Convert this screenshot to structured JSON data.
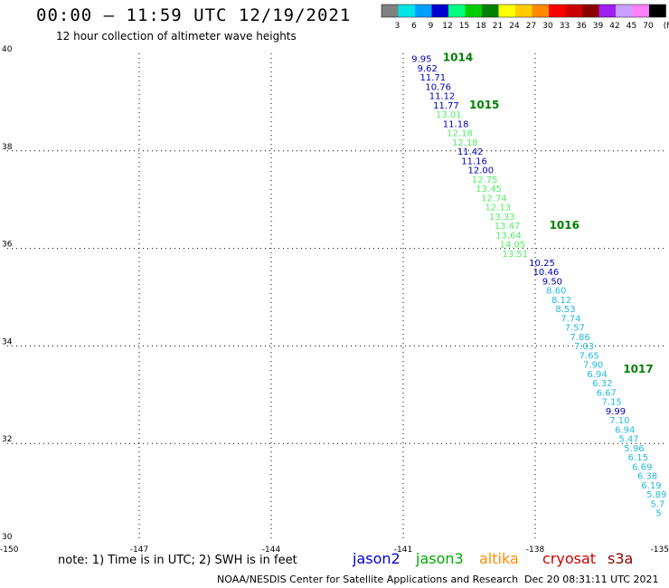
{
  "header": {
    "title": "00:00 – 11:59 UTC 12/19/2021",
    "subtitle": "12 hour collection of altimeter wave heights"
  },
  "color_scale": {
    "colors": [
      "#808080",
      "#00e5e5",
      "#00a0ff",
      "#0000cd",
      "#00ff7f",
      "#00cd00",
      "#008000",
      "#ffff00",
      "#ffcc00",
      "#ff8c00",
      "#ff0000",
      "#cd0000",
      "#8b0000",
      "#a020f0",
      "#c8a0ff",
      "#ff80ff",
      "#000000"
    ],
    "labels": [
      "3",
      "6",
      "9",
      "12",
      "15",
      "18",
      "21",
      "24",
      "27",
      "30",
      "33",
      "36",
      "39",
      "42",
      "45",
      "70"
    ],
    "unit": "(ft)"
  },
  "chart_data": {
    "type": "scatter",
    "title": "00:00 – 11:59 UTC 12/19/2021",
    "subtitle": "12 hour collection of altimeter wave heights",
    "xlim": [
      -150,
      -135
    ],
    "ylim": [
      30,
      40
    ],
    "x_ticks": [
      "-150",
      "-147",
      "-144",
      "-141",
      "-138",
      "-135"
    ],
    "y_ticks": [
      "30",
      "32",
      "34",
      "36",
      "38",
      "40"
    ],
    "grid": true,
    "series": [
      {
        "name": "jason2",
        "color": "#0000cc",
        "values": [
          9.95,
          9.62,
          11.71,
          10.76,
          11.12,
          11.77,
          11.18,
          11.42,
          11.16,
          12.0,
          10.25,
          10.46,
          9.5,
          9.99
        ]
      },
      {
        "name": "jason3",
        "color": "#00aa00",
        "values": [
          13.01,
          12.18,
          12.18,
          12.75,
          13.45,
          12.74,
          12.13,
          13.33,
          13.47,
          13.64,
          14.05,
          13.51
        ]
      },
      {
        "name": "altika",
        "color": "#ff8c00",
        "values": []
      },
      {
        "name": "cryosat",
        "color": "#cc0000",
        "values": []
      },
      {
        "name": "s3a",
        "color": "#8b0000",
        "values": [
          8.6,
          8.12,
          8.53,
          7.74,
          7.57,
          7.86,
          7.03,
          7.65,
          7.9,
          6.94,
          6.32,
          6.67,
          7.15,
          7.1,
          6.94,
          5.47,
          5.96,
          6.15,
          6.69,
          6.38,
          6.19,
          5.89,
          5.7,
          5
        ]
      }
    ],
    "labels": [
      {
        "t": "9.95",
        "c": "#0000b4",
        "lon": -140.81,
        "lat": 39.82
      },
      {
        "t": "9.62",
        "c": "#0000b4",
        "lon": -140.68,
        "lat": 39.63
      },
      {
        "t": "11.71",
        "c": "#0000b4",
        "lon": -140.62,
        "lat": 39.44
      },
      {
        "t": "10.76",
        "c": "#0000b4",
        "lon": -140.5,
        "lat": 39.25
      },
      {
        "t": "11.12",
        "c": "#0000b4",
        "lon": -140.41,
        "lat": 39.06
      },
      {
        "t": "11.77",
        "c": "#0000b4",
        "lon": -140.32,
        "lat": 38.87
      },
      {
        "t": "13.01",
        "c": "#55ee66",
        "lon": -140.26,
        "lat": 38.68
      },
      {
        "t": "11.18",
        "c": "#0000b4",
        "lon": -140.1,
        "lat": 38.49
      },
      {
        "t": "12.18",
        "c": "#55ee66",
        "lon": -140.01,
        "lat": 38.3
      },
      {
        "t": "12.18",
        "c": "#55ee66",
        "lon": -139.89,
        "lat": 38.11
      },
      {
        "t": "11.42",
        "c": "#0000b4",
        "lon": -139.77,
        "lat": 37.92
      },
      {
        "t": "11.16",
        "c": "#0000b4",
        "lon": -139.68,
        "lat": 37.73
      },
      {
        "t": "12.00",
        "c": "#0000b4",
        "lon": -139.53,
        "lat": 37.54
      },
      {
        "t": "12.75",
        "c": "#55ee66",
        "lon": -139.44,
        "lat": 37.35
      },
      {
        "t": "13.45",
        "c": "#55ee66",
        "lon": -139.35,
        "lat": 37.16
      },
      {
        "t": "12.74",
        "c": "#55ee66",
        "lon": -139.23,
        "lat": 36.97
      },
      {
        "t": "12.13",
        "c": "#55ee66",
        "lon": -139.14,
        "lat": 36.78
      },
      {
        "t": "13.33",
        "c": "#55ee66",
        "lon": -139.05,
        "lat": 36.59
      },
      {
        "t": "13.47",
        "c": "#55ee66",
        "lon": -138.93,
        "lat": 36.4
      },
      {
        "t": "13.64",
        "c": "#55ee66",
        "lon": -138.9,
        "lat": 36.21
      },
      {
        "t": "14.05",
        "c": "#55ee66",
        "lon": -138.81,
        "lat": 36.02
      },
      {
        "t": "13.51",
        "c": "#55ee66",
        "lon": -138.75,
        "lat": 35.83
      },
      {
        "t": "10.25",
        "c": "#0000b4",
        "lon": -138.14,
        "lat": 35.64
      },
      {
        "t": "10.46",
        "c": "#0000b4",
        "lon": -138.05,
        "lat": 35.45
      },
      {
        "t": "9.50",
        "c": "#0000b4",
        "lon": -137.84,
        "lat": 35.26
      },
      {
        "t": "8.60",
        "c": "#22bbdd",
        "lon": -137.75,
        "lat": 35.07
      },
      {
        "t": "8.12",
        "c": "#22bbdd",
        "lon": -137.63,
        "lat": 34.88
      },
      {
        "t": "8.53",
        "c": "#22bbdd",
        "lon": -137.54,
        "lat": 34.69
      },
      {
        "t": "7.74",
        "c": "#22bbdd",
        "lon": -137.42,
        "lat": 34.5
      },
      {
        "t": "7.57",
        "c": "#22bbdd",
        "lon": -137.33,
        "lat": 34.31
      },
      {
        "t": "7.86",
        "c": "#22bbdd",
        "lon": -137.21,
        "lat": 34.12
      },
      {
        "t": "7.03",
        "c": "#22bbdd",
        "lon": -137.12,
        "lat": 33.93
      },
      {
        "t": "7.65",
        "c": "#22bbdd",
        "lon": -137.0,
        "lat": 33.74
      },
      {
        "t": "7.90",
        "c": "#22bbdd",
        "lon": -136.91,
        "lat": 33.55
      },
      {
        "t": "6.94",
        "c": "#22bbdd",
        "lon": -136.82,
        "lat": 33.36
      },
      {
        "t": "6.32",
        "c": "#22bbdd",
        "lon": -136.7,
        "lat": 33.17
      },
      {
        "t": "6.67",
        "c": "#22bbdd",
        "lon": -136.61,
        "lat": 32.98
      },
      {
        "t": "7.15",
        "c": "#22bbdd",
        "lon": -136.49,
        "lat": 32.79
      },
      {
        "t": "9.99",
        "c": "#0000b4",
        "lon": -136.4,
        "lat": 32.6
      },
      {
        "t": "7.10",
        "c": "#22bbdd",
        "lon": -136.31,
        "lat": 32.41
      },
      {
        "t": "6.94",
        "c": "#22bbdd",
        "lon": -136.19,
        "lat": 32.22
      },
      {
        "t": "5.47",
        "c": "#22bbdd",
        "lon": -136.1,
        "lat": 32.03
      },
      {
        "t": "5.96",
        "c": "#22bbdd",
        "lon": -135.98,
        "lat": 31.84
      },
      {
        "t": "6.15",
        "c": "#22bbdd",
        "lon": -135.89,
        "lat": 31.65
      },
      {
        "t": "6.69",
        "c": "#22bbdd",
        "lon": -135.8,
        "lat": 31.46
      },
      {
        "t": "6.38",
        "c": "#22bbdd",
        "lon": -135.68,
        "lat": 31.27
      },
      {
        "t": "6.19",
        "c": "#22bbdd",
        "lon": -135.59,
        "lat": 31.08
      },
      {
        "t": "5.89",
        "c": "#22bbdd",
        "lon": -135.47,
        "lat": 30.89
      },
      {
        "t": "5.7",
        "c": "#22bbdd",
        "lon": -135.38,
        "lat": 30.7
      },
      {
        "t": "5",
        "c": "#22bbdd",
        "lon": -135.26,
        "lat": 30.51
      }
    ],
    "hour_labels": [
      {
        "t": "1014",
        "lon": -140.1,
        "lat": 39.84
      },
      {
        "t": "1015",
        "lon": -139.5,
        "lat": 38.87
      },
      {
        "t": "1016",
        "lon": -137.68,
        "lat": 36.4
      },
      {
        "t": "1017",
        "lon": -136.0,
        "lat": 33.45
      }
    ]
  },
  "footer": {
    "note": "note: 1) Time is in UTC; 2) SWH is in feet",
    "credit": "NOAA/NESDIS Center for Satellite Applications and Research",
    "timestamp": "Dec 20 08:31:11 UTC 2021",
    "satellites": [
      {
        "label": "jason2",
        "color": "#0000cc"
      },
      {
        "label": "jason3",
        "color": "#00aa00"
      },
      {
        "label": "altika",
        "color": "#ff8c00"
      },
      {
        "label": "cryosat",
        "color": "#cc0000"
      },
      {
        "label": "s3a",
        "color": "#8b0000"
      }
    ]
  }
}
